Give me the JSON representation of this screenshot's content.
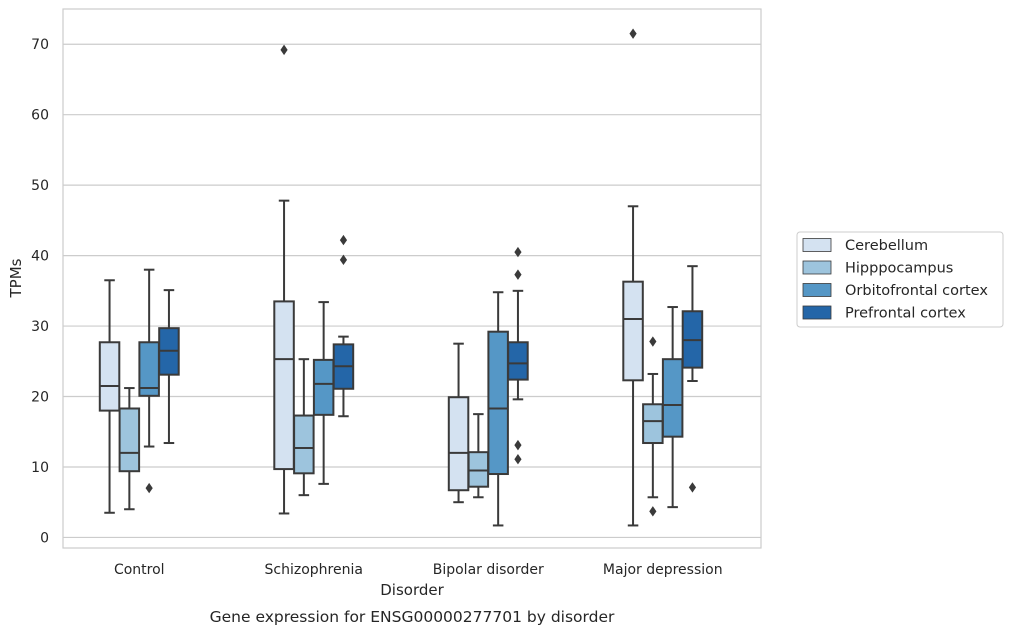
{
  "chart_data": {
    "type": "box",
    "caption": "Gene expression for ENSG00000277701 by disorder",
    "xlabel": "Disorder",
    "ylabel": "TPMs",
    "ylim": [
      -1.5,
      75
    ],
    "yticks": [
      0,
      10,
      20,
      30,
      40,
      50,
      60,
      70
    ],
    "grid": "horizontal",
    "legend_position": "right",
    "categories": [
      "Control",
      "Schizophrenia",
      "Bipolar disorder",
      "Major depression"
    ],
    "series": [
      {
        "name": "Cerebellum",
        "color": "#d4e2f1",
        "boxes": [
          {
            "whislo": 3.5,
            "q1": 18,
            "med": 21.5,
            "q3": 27.7,
            "whishi": 36.5,
            "fliers": []
          },
          {
            "whislo": 3.4,
            "q1": 9.7,
            "med": 25.3,
            "q3": 33.5,
            "whishi": 47.8,
            "fliers": [
              69.2
            ]
          },
          {
            "whislo": 5,
            "q1": 6.7,
            "med": 12,
            "q3": 19.9,
            "whishi": 27.5,
            "fliers": []
          },
          {
            "whislo": 1.7,
            "q1": 22.3,
            "med": 31,
            "q3": 36.3,
            "whishi": 47,
            "fliers": [
              71.5
            ]
          }
        ]
      },
      {
        "name": "Hipppocampus",
        "color": "#9dc4dd",
        "boxes": [
          {
            "whislo": 4,
            "q1": 9.4,
            "med": 12,
            "q3": 18.3,
            "whishi": 21.2,
            "fliers": []
          },
          {
            "whislo": 6,
            "q1": 9.1,
            "med": 12.7,
            "q3": 17.3,
            "whishi": 25.3,
            "fliers": []
          },
          {
            "whislo": 5.7,
            "q1": 7.2,
            "med": 9.5,
            "q3": 12.1,
            "whishi": 17.5,
            "fliers": []
          },
          {
            "whislo": 5.7,
            "q1": 13.4,
            "med": 16.5,
            "q3": 18.9,
            "whishi": 23.2,
            "fliers": [
              27.8,
              3.7
            ]
          }
        ]
      },
      {
        "name": "Orbitofrontal cortex",
        "color": "#5597c6",
        "boxes": [
          {
            "whislo": 12.9,
            "q1": 20.1,
            "med": 21.2,
            "q3": 27.7,
            "whishi": 38,
            "fliers": [
              7
            ]
          },
          {
            "whislo": 7.6,
            "q1": 17.4,
            "med": 21.8,
            "q3": 25.2,
            "whishi": 33.4,
            "fliers": []
          },
          {
            "whislo": 1.7,
            "q1": 9,
            "med": 18.3,
            "q3": 29.2,
            "whishi": 34.8,
            "fliers": []
          },
          {
            "whislo": 4.3,
            "q1": 14.3,
            "med": 18.8,
            "q3": 25.3,
            "whishi": 32.7,
            "fliers": []
          }
        ]
      },
      {
        "name": "Prefrontal cortex",
        "color": "#2466a8",
        "boxes": [
          {
            "whislo": 13.4,
            "q1": 23.1,
            "med": 26.5,
            "q3": 29.7,
            "whishi": 35.1,
            "fliers": []
          },
          {
            "whislo": 17.2,
            "q1": 21.1,
            "med": 24.3,
            "q3": 27.4,
            "whishi": 28.5,
            "fliers": [
              42.2,
              39.4
            ]
          },
          {
            "whislo": 19.6,
            "q1": 22.4,
            "med": 24.7,
            "q3": 27.7,
            "whishi": 35,
            "fliers": [
              40.5,
              37.3,
              13.1,
              11.1
            ]
          },
          {
            "whislo": 22.2,
            "q1": 24.1,
            "med": 28,
            "q3": 32.1,
            "whishi": 38.5,
            "fliers": [
              7.1
            ]
          }
        ]
      }
    ]
  }
}
